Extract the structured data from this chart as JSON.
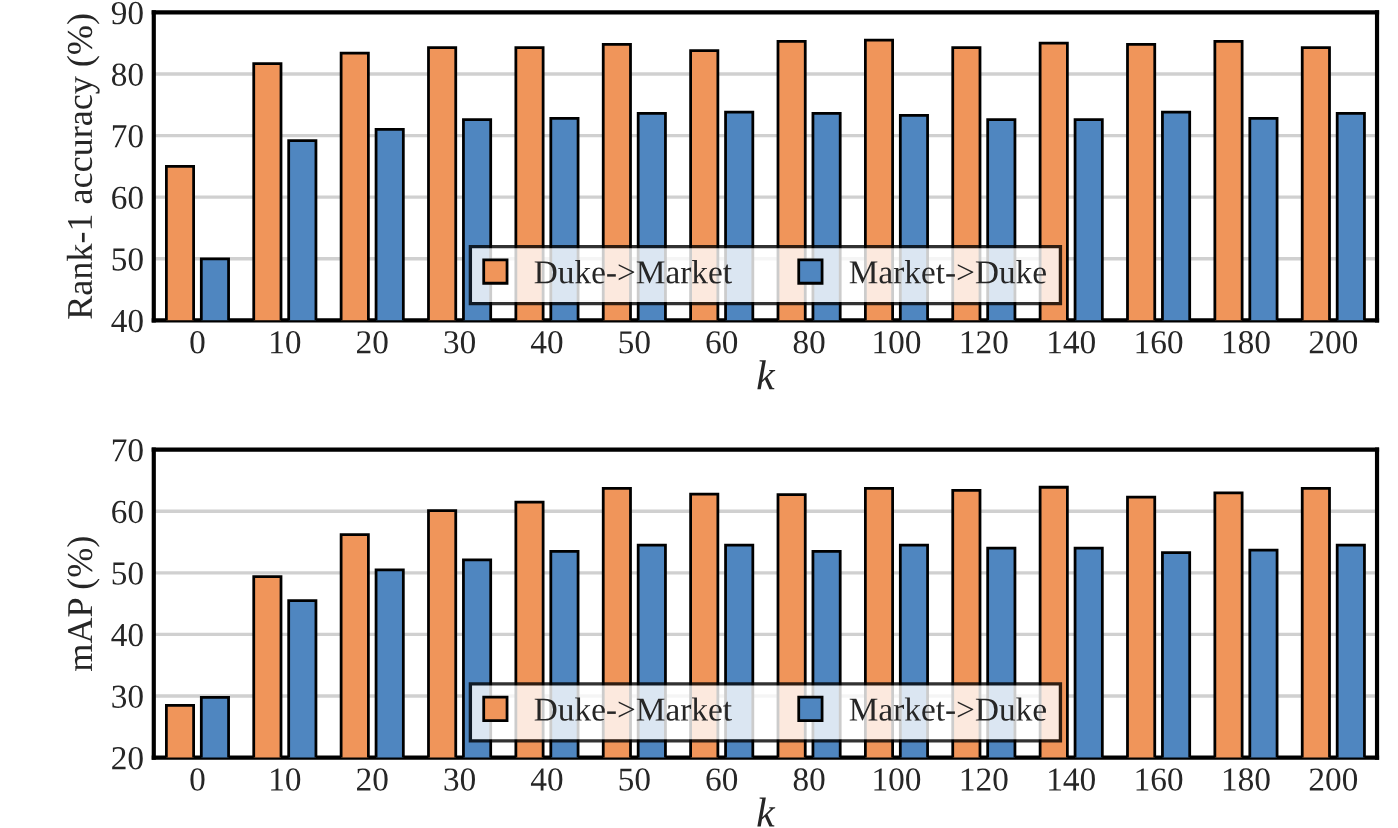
{
  "chart_data": [
    {
      "type": "bar",
      "categories": [
        "0",
        "10",
        "20",
        "30",
        "40",
        "50",
        "60",
        "80",
        "100",
        "120",
        "140",
        "160",
        "180",
        "200"
      ],
      "xlabel": "k",
      "ylabel": "Rank-1 accuracy (%)",
      "ylim": [
        40,
        90
      ],
      "yticks": [
        40,
        50,
        60,
        70,
        80,
        90
      ],
      "grid": "y",
      "legend": "bottom",
      "series": [
        {
          "name": "Duke->Market",
          "color": "#f0955a",
          "values": [
            65,
            81.7,
            83.4,
            84.3,
            84.3,
            84.8,
            83.8,
            85.3,
            85.5,
            84.3,
            85.0,
            84.8,
            85.3,
            84.3
          ]
        },
        {
          "name": "Market->Duke",
          "color": "#4f86c0",
          "values": [
            50,
            69.2,
            71,
            72.6,
            72.8,
            73.6,
            73.8,
            73.6,
            73.3,
            72.6,
            72.6,
            73.8,
            72.8,
            73.6
          ]
        }
      ]
    },
    {
      "type": "bar",
      "categories": [
        "0",
        "10",
        "20",
        "30",
        "40",
        "50",
        "60",
        "80",
        "100",
        "120",
        "140",
        "160",
        "180",
        "200"
      ],
      "xlabel": "k",
      "ylabel": "mAP (%)",
      "ylim": [
        20,
        70
      ],
      "yticks": [
        20,
        30,
        40,
        50,
        60,
        70
      ],
      "grid": "y",
      "legend": "bottom",
      "series": [
        {
          "name": "Duke->Market",
          "color": "#f0955a",
          "values": [
            28.5,
            49.4,
            56.2,
            60.1,
            61.5,
            63.7,
            62.8,
            62.7,
            63.7,
            63.4,
            63.9,
            62.3,
            63.0,
            63.7
          ]
        },
        {
          "name": "Market->Duke",
          "color": "#4f86c0",
          "values": [
            29.8,
            45.5,
            50.5,
            52.1,
            53.5,
            54.5,
            54.5,
            53.5,
            54.5,
            54.0,
            54.0,
            53.3,
            53.7,
            54.5
          ]
        }
      ]
    }
  ]
}
